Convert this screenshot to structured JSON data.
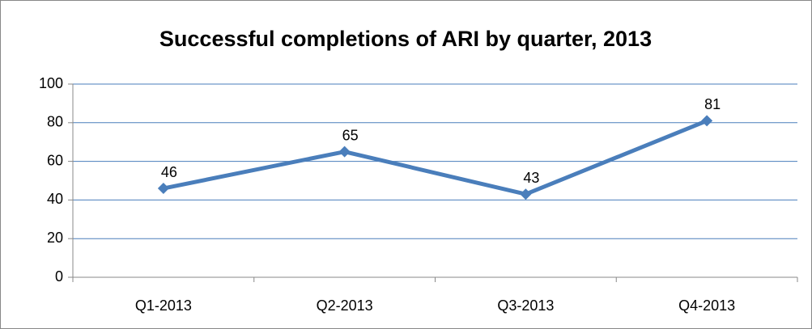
{
  "chart_data": {
    "type": "line",
    "title": "Successful completions of ARI by quarter, 2013",
    "categories": [
      "Q1-2013",
      "Q2-2013",
      "Q3-2013",
      "Q4-2013"
    ],
    "values": [
      46,
      65,
      43,
      81
    ],
    "color": "#4a7ebb",
    "ylim": [
      0,
      100
    ],
    "yticks": [
      0,
      20,
      40,
      60,
      80,
      100
    ],
    "grid": true
  }
}
